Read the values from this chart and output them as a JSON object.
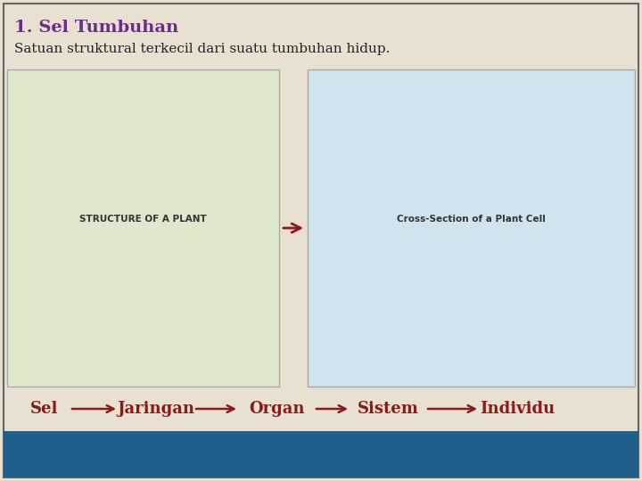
{
  "title": "1. Sel Tumbuhan",
  "subtitle": "Satuan struktural terkecil dari suatu tumbuhan hidup.",
  "title_color": "#6B2D8B",
  "subtitle_color": "#222222",
  "bg_color": "#E8E0D0",
  "border_color": "#888888",
  "bottom_bar_color": "#1F5F8B",
  "arrow_color": "#8B1A1A",
  "flow_items": [
    "Sel",
    "Jaringan",
    "Organ",
    "Sistem",
    "Individu"
  ],
  "flow_text_color": "#8B1A1A",
  "title_fontsize": 14,
  "subtitle_fontsize": 11,
  "flow_fontsize": 13,
  "fig_width": 7.2,
  "fig_height": 5.4,
  "dpi": 100
}
